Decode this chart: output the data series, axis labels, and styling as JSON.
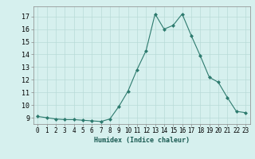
{
  "x": [
    0,
    1,
    2,
    3,
    4,
    5,
    6,
    7,
    8,
    9,
    10,
    11,
    12,
    13,
    14,
    15,
    16,
    17,
    18,
    19,
    20,
    21,
    22,
    23
  ],
  "y": [
    9.1,
    9.0,
    8.9,
    8.85,
    8.85,
    8.8,
    8.75,
    8.7,
    8.9,
    9.9,
    11.1,
    12.8,
    14.3,
    17.2,
    16.0,
    16.3,
    17.2,
    15.5,
    13.9,
    12.2,
    11.8,
    10.6,
    9.5,
    9.4
  ],
  "line_color": "#2d7a6e",
  "marker": "D",
  "marker_size": 2.0,
  "bg_color": "#d6f0ee",
  "grid_color": "#b8dbd8",
  "xlabel": "Humidex (Indice chaleur)",
  "ylim": [
    8.5,
    17.8
  ],
  "xlim": [
    -0.5,
    23.5
  ],
  "yticks": [
    9,
    10,
    11,
    12,
    13,
    14,
    15,
    16,
    17
  ],
  "xticks": [
    0,
    1,
    2,
    3,
    4,
    5,
    6,
    7,
    8,
    9,
    10,
    11,
    12,
    13,
    14,
    15,
    16,
    17,
    18,
    19,
    20,
    21,
    22,
    23
  ],
  "xlabel_fontsize": 6.0,
  "tick_fontsize": 5.5
}
